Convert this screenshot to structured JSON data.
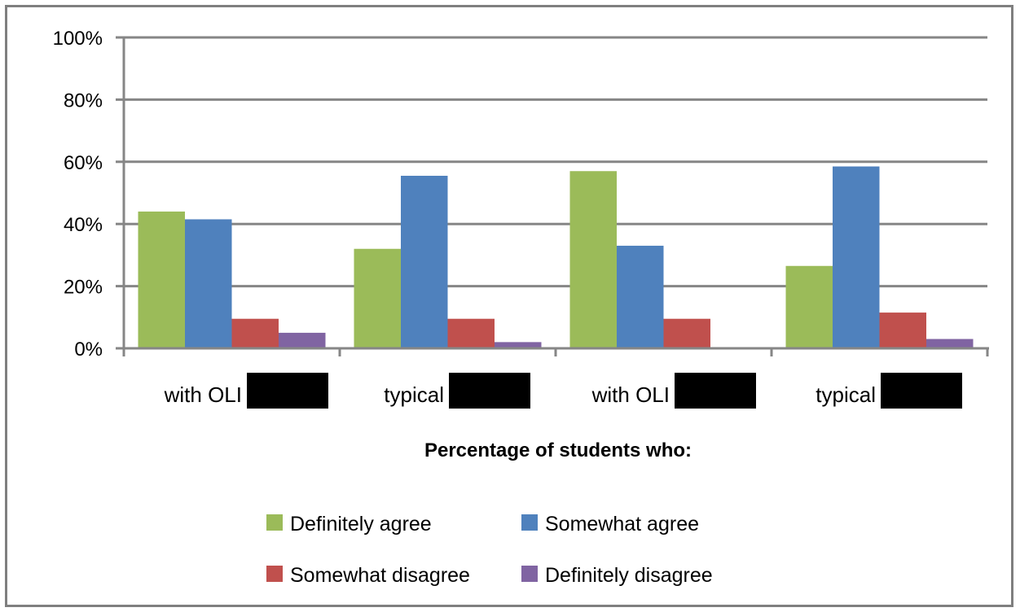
{
  "chart_data": {
    "type": "bar",
    "categories": [
      "with OLI",
      "typical",
      "with OLI",
      "typical"
    ],
    "series": [
      {
        "name": "Definitely agree",
        "color": "#9bbb59",
        "values": [
          44,
          32,
          57,
          26.5
        ]
      },
      {
        "name": "Somewhat agree",
        "color": "#4f81bd",
        "values": [
          41.5,
          55.5,
          33,
          58.5
        ]
      },
      {
        "name": "Somewhat disagree",
        "color": "#c0504d",
        "values": [
          9.5,
          9.5,
          9.5,
          11.5
        ]
      },
      {
        "name": "Definitely disagree",
        "color": "#8064a2",
        "values": [
          5,
          2,
          0,
          3
        ]
      }
    ],
    "yticks": [
      "0%",
      "20%",
      "40%",
      "60%",
      "80%",
      "100%"
    ],
    "ylim": [
      0,
      100
    ],
    "xlabel": "Percentage of students who:",
    "ylabel": "",
    "title": "",
    "grid": true,
    "legend_position": "bottom",
    "redaction_color": "#000000"
  }
}
